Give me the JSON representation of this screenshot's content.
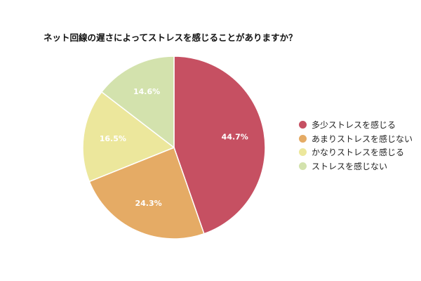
{
  "chart_data": {
    "type": "pie",
    "title": "ネット回線の遅さによってストレスを感じることがありますか？",
    "categories": [
      "多少ストレスを感じる",
      "あまりストレスを感じない",
      "かなりストレスを感じる",
      "ストレスを感じない"
    ],
    "values": [
      44.7,
      24.3,
      16.5,
      14.6
    ],
    "labels": [
      "44.7%",
      "24.3%",
      "16.5%",
      "14.6%"
    ],
    "colors": [
      "#c65062",
      "#e5ab65",
      "#ece79c",
      "#d3e2ad"
    ],
    "legend_position": "right",
    "start_angle": "12 o'clock",
    "direction": "clockwise"
  }
}
